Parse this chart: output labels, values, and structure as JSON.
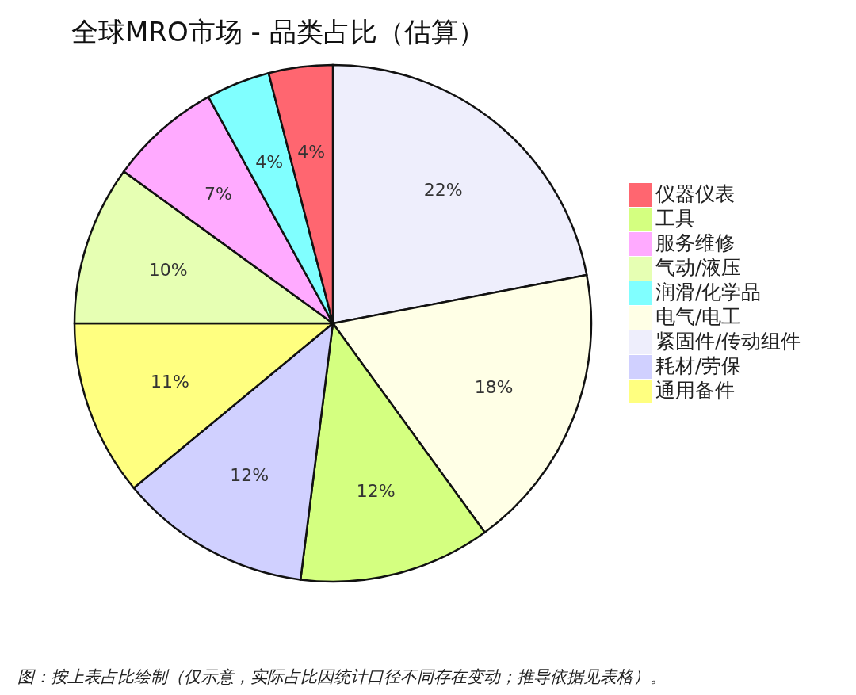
{
  "chart_data": {
    "type": "pie",
    "title": "全球MRO市场 - 品类占比（估算）",
    "categories": [
      "紧固件/传动组件",
      "电气/电工",
      "工具",
      "耗材/劳保",
      "通用备件",
      "气动/液压",
      "服务维修",
      "润滑/化学品",
      "仪器仪表"
    ],
    "values": [
      22,
      18,
      12,
      12,
      11,
      10,
      7,
      4,
      4
    ],
    "value_labels": [
      "22%",
      "18%",
      "12%",
      "12%",
      "11%",
      "10%",
      "7%",
      "4%",
      "4%"
    ],
    "colors": [
      "#eeeefc",
      "#ffffe6",
      "#d4ff80",
      "#d0d0ff",
      "#ffff80",
      "#e6ffb3",
      "#ffaaff",
      "#80ffff",
      "#ff6670"
    ],
    "legend": "right",
    "annotations": [
      "图：按上表占比绘制（仅示意，实际占比因统计口径不同存在变动；推导依据见表格）。"
    ]
  }
}
